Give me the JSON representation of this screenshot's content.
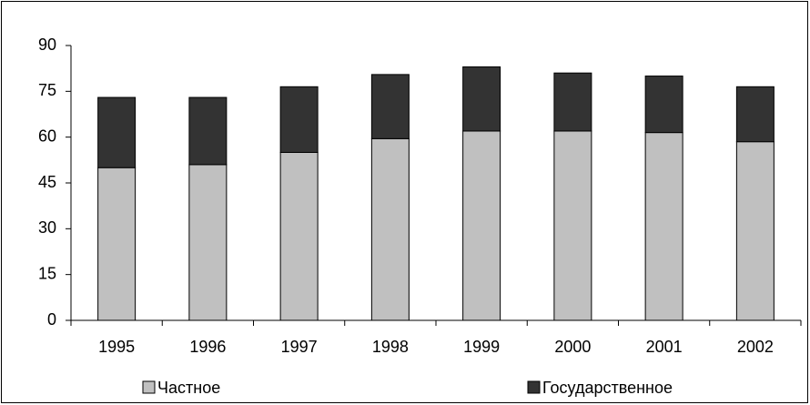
{
  "chart_data": {
    "type": "bar",
    "stacked": true,
    "categories": [
      "1995",
      "1996",
      "1997",
      "1998",
      "1999",
      "2000",
      "2001",
      "2002"
    ],
    "series": [
      {
        "name": "Частное",
        "color": "#c0c0c0",
        "values": [
          50,
          51,
          55,
          59.5,
          62,
          62,
          61.5,
          58.5
        ]
      },
      {
        "name": "Государственное",
        "color": "#333333",
        "values": [
          23,
          22,
          21.5,
          21,
          21,
          19,
          18.5,
          18
        ]
      }
    ],
    "ylim": [
      0,
      90
    ],
    "yticks": [
      0,
      15,
      30,
      45,
      60,
      75,
      90
    ],
    "grid": false,
    "legend": "bottom"
  }
}
